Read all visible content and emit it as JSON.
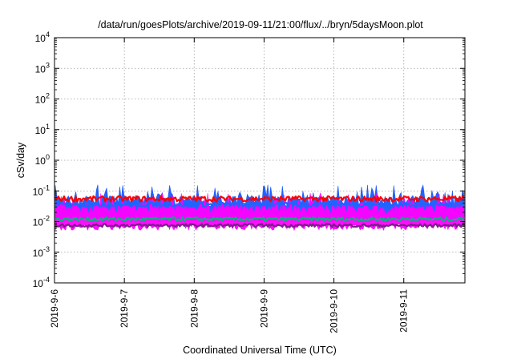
{
  "chart_data": {
    "type": "line",
    "title": "/data/run/goesPlots/archive/2019-09-11/21:00/flux/../bryn/5daysMoon.plot",
    "xlabel": "Coordinated Universal Time (UTC)",
    "ylabel": "cSv/day",
    "yscale": "log",
    "ylim": [
      0.0001,
      10000
    ],
    "xlim": [
      "2019-09-06T00:00",
      "2019-09-11T21:00"
    ],
    "grid": true,
    "legend": "none",
    "x_ticks": [
      "2019-9-6",
      "2019-9-7",
      "2019-9-8",
      "2019-9-9",
      "2019-9-10",
      "2019-9-11"
    ],
    "y_ticks": [
      {
        "base": "10",
        "exp": "-4"
      },
      {
        "base": "10",
        "exp": "-3"
      },
      {
        "base": "10",
        "exp": "-2"
      },
      {
        "base": "10",
        "exp": "-1"
      },
      {
        "base": "10",
        "exp": "0"
      },
      {
        "base": "10",
        "exp": "1"
      },
      {
        "base": "10",
        "exp": "2"
      },
      {
        "base": "10",
        "exp": "3"
      },
      {
        "base": "10",
        "exp": "4"
      }
    ],
    "series": [
      {
        "color": "#ff0000",
        "style": "line",
        "level": 0.055,
        "spread": 0.18
      },
      {
        "color": "#1e64ff",
        "style": "line",
        "level": 0.036,
        "spread": 0.15
      },
      {
        "color": "#00b080",
        "style": "line",
        "level": 0.012,
        "spread": 0.12
      },
      {
        "color": "#7a1e8a",
        "style": "line",
        "level": 0.0075,
        "spread": 0.1
      },
      {
        "color": "#1a5aff",
        "style": "fill",
        "low": 0.013,
        "high": 0.045
      },
      {
        "color": "#ff00ff",
        "style": "fill",
        "low": 0.007,
        "high": 0.025
      }
    ]
  }
}
